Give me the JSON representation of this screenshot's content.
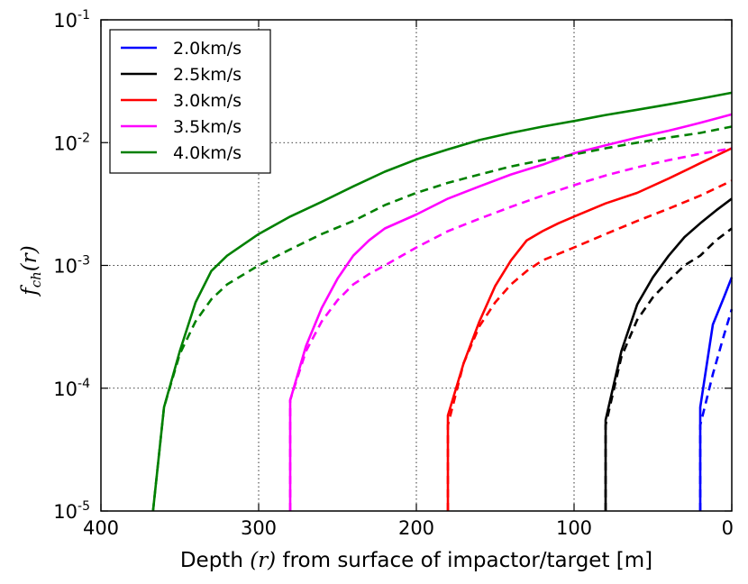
{
  "chart_data": {
    "type": "line",
    "title": "",
    "xlabel_prefix": "Depth ",
    "xlabel_math": "(r)",
    "xlabel_suffix": " from surface of impactor/target [m]",
    "ylabel": "f_ch(r)",
    "ylabel_main": "f",
    "ylabel_sub": "ch",
    "ylabel_arg": "(r)",
    "x_reversed": true,
    "xlim": [
      400,
      0
    ],
    "ylim": [
      1e-05,
      0.1
    ],
    "yscale": "log",
    "grid": true,
    "grid_style": "dotted",
    "legend_position": "top-left",
    "x_ticks": [
      {
        "value": 400,
        "label": "400"
      },
      {
        "value": 300,
        "label": "300"
      },
      {
        "value": 200,
        "label": "200"
      },
      {
        "value": 100,
        "label": "100"
      },
      {
        "value": 0,
        "label": "0"
      }
    ],
    "y_ticks": [
      {
        "value": 1e-05,
        "base": "10",
        "exp": "-5"
      },
      {
        "value": 0.0001,
        "base": "10",
        "exp": "-4"
      },
      {
        "value": 0.001,
        "base": "10",
        "exp": "-3"
      },
      {
        "value": 0.01,
        "base": "10",
        "exp": "-2"
      },
      {
        "value": 0.1,
        "base": "10",
        "exp": "-1"
      }
    ],
    "series": [
      {
        "name": "2.0km/s",
        "color": "#0000ff",
        "solid": [
          [
            20,
            1e-05
          ],
          [
            20,
            7e-05
          ],
          [
            12,
            0.00033
          ],
          [
            5,
            0.00055
          ],
          [
            0,
            0.0008
          ]
        ],
        "dashed": [
          [
            20,
            1e-05
          ],
          [
            20,
            5e-05
          ],
          [
            12,
            0.00013
          ],
          [
            5,
            0.00027
          ],
          [
            0,
            0.00044
          ]
        ]
      },
      {
        "name": "2.5km/s",
        "color": "#000000",
        "solid": [
          [
            80,
            1e-05
          ],
          [
            80,
            5.5e-05
          ],
          [
            70,
            0.0002
          ],
          [
            60,
            0.00048
          ],
          [
            50,
            0.0008
          ],
          [
            40,
            0.0012
          ],
          [
            30,
            0.0017
          ],
          [
            20,
            0.0022
          ],
          [
            10,
            0.0028
          ],
          [
            0,
            0.0035
          ]
        ],
        "dashed": [
          [
            80,
            1e-05
          ],
          [
            80,
            5e-05
          ],
          [
            70,
            0.00018
          ],
          [
            60,
            0.00036
          ],
          [
            50,
            0.00055
          ],
          [
            40,
            0.00075
          ],
          [
            30,
            0.001
          ],
          [
            20,
            0.0012
          ],
          [
            10,
            0.0016
          ],
          [
            0,
            0.002
          ]
        ]
      },
      {
        "name": "3.0km/s",
        "color": "#ff0000",
        "solid": [
          [
            180,
            1e-05
          ],
          [
            180,
            6e-05
          ],
          [
            170,
            0.00016
          ],
          [
            160,
            0.00035
          ],
          [
            150,
            0.00068
          ],
          [
            140,
            0.0011
          ],
          [
            130,
            0.0016
          ],
          [
            120,
            0.0019
          ],
          [
            110,
            0.0022
          ],
          [
            100,
            0.0025
          ],
          [
            80,
            0.0032
          ],
          [
            60,
            0.0039
          ],
          [
            40,
            0.0051
          ],
          [
            20,
            0.0068
          ],
          [
            0,
            0.009
          ]
        ],
        "dashed": [
          [
            180,
            1e-05
          ],
          [
            180,
            5e-05
          ],
          [
            170,
            0.00016
          ],
          [
            160,
            0.00032
          ],
          [
            150,
            0.0005
          ],
          [
            140,
            0.0007
          ],
          [
            130,
            0.0009
          ],
          [
            120,
            0.0011
          ],
          [
            100,
            0.0014
          ],
          [
            80,
            0.0018
          ],
          [
            60,
            0.0023
          ],
          [
            40,
            0.0029
          ],
          [
            20,
            0.0037
          ],
          [
            0,
            0.0049
          ]
        ]
      },
      {
        "name": "3.5km/s",
        "color": "#ff00ff",
        "solid": [
          [
            280,
            1e-05
          ],
          [
            280,
            8e-05
          ],
          [
            270,
            0.00022
          ],
          [
            260,
            0.00045
          ],
          [
            250,
            0.00078
          ],
          [
            240,
            0.0012
          ],
          [
            230,
            0.0016
          ],
          [
            220,
            0.002
          ],
          [
            200,
            0.0026
          ],
          [
            180,
            0.0035
          ],
          [
            160,
            0.0044
          ],
          [
            140,
            0.0055
          ],
          [
            120,
            0.0066
          ],
          [
            100,
            0.0082
          ],
          [
            80,
            0.0095
          ],
          [
            60,
            0.011
          ],
          [
            40,
            0.0125
          ],
          [
            20,
            0.0145
          ],
          [
            0,
            0.017
          ]
        ],
        "dashed": [
          [
            280,
            1e-05
          ],
          [
            280,
            8e-05
          ],
          [
            270,
            0.0002
          ],
          [
            260,
            0.00035
          ],
          [
            250,
            0.00052
          ],
          [
            240,
            0.0007
          ],
          [
            230,
            0.00085
          ],
          [
            220,
            0.001
          ],
          [
            200,
            0.0014
          ],
          [
            180,
            0.0019
          ],
          [
            160,
            0.0024
          ],
          [
            140,
            0.003
          ],
          [
            120,
            0.0037
          ],
          [
            100,
            0.0045
          ],
          [
            80,
            0.0054
          ],
          [
            60,
            0.0063
          ],
          [
            40,
            0.0072
          ],
          [
            20,
            0.0081
          ],
          [
            0,
            0.009
          ]
        ]
      },
      {
        "name": "4.0km/s",
        "color": "#008000",
        "solid": [
          [
            367,
            1e-05
          ],
          [
            360,
            7e-05
          ],
          [
            350,
            0.0002
          ],
          [
            340,
            0.0005
          ],
          [
            330,
            0.0009
          ],
          [
            320,
            0.0012
          ],
          [
            300,
            0.0018
          ],
          [
            280,
            0.0025
          ],
          [
            260,
            0.0033
          ],
          [
            240,
            0.0044
          ],
          [
            220,
            0.0058
          ],
          [
            200,
            0.0073
          ],
          [
            180,
            0.0088
          ],
          [
            160,
            0.0105
          ],
          [
            140,
            0.012
          ],
          [
            120,
            0.0135
          ],
          [
            100,
            0.015
          ],
          [
            80,
            0.0168
          ],
          [
            60,
            0.0185
          ],
          [
            40,
            0.0205
          ],
          [
            20,
            0.0228
          ],
          [
            0,
            0.0255
          ]
        ],
        "dashed": [
          [
            367,
            1e-05
          ],
          [
            360,
            7e-05
          ],
          [
            350,
            0.00019
          ],
          [
            340,
            0.00035
          ],
          [
            330,
            0.00053
          ],
          [
            320,
            0.0007
          ],
          [
            300,
            0.001
          ],
          [
            280,
            0.00135
          ],
          [
            260,
            0.0018
          ],
          [
            240,
            0.0023
          ],
          [
            220,
            0.0031
          ],
          [
            200,
            0.0039
          ],
          [
            180,
            0.0047
          ],
          [
            160,
            0.0055
          ],
          [
            140,
            0.0064
          ],
          [
            120,
            0.0072
          ],
          [
            100,
            0.008
          ],
          [
            80,
            0.009
          ],
          [
            60,
            0.01
          ],
          [
            40,
            0.011
          ],
          [
            20,
            0.012
          ],
          [
            0,
            0.0135
          ]
        ]
      }
    ]
  }
}
